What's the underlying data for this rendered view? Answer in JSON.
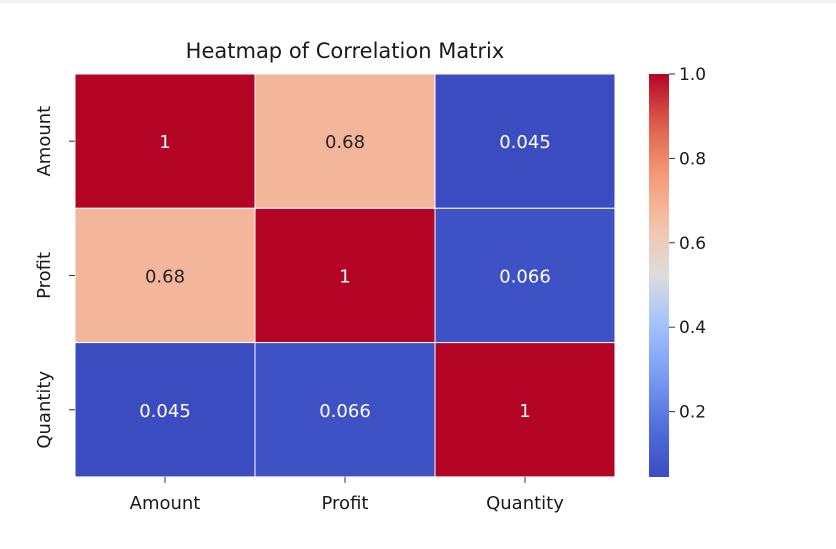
{
  "chart_data": {
    "type": "heatmap",
    "title": "Heatmap of Correlation Matrix",
    "x_labels": [
      "Amount",
      "Profit",
      "Quantity"
    ],
    "y_labels": [
      "Amount",
      "Profit",
      "Quantity"
    ],
    "values": [
      [
        1,
        0.68,
        0.045
      ],
      [
        0.68,
        1,
        0.066
      ],
      [
        0.045,
        0.066,
        1
      ]
    ],
    "annotations": [
      [
        "1",
        "0.68",
        "0.045"
      ],
      [
        "0.68",
        "1",
        "0.066"
      ],
      [
        "0.045",
        "0.066",
        "1"
      ]
    ],
    "colormap": "coolwarm",
    "colorbar_range": [
      0.045,
      1.0
    ],
    "colorbar_ticks": [
      "0.2",
      "0.4",
      "0.6",
      "0.8",
      "1.0"
    ],
    "colorbar_tick_values": [
      0.2,
      0.4,
      0.6,
      0.8,
      1.0
    ],
    "grid_line_color": "#ffffff"
  }
}
